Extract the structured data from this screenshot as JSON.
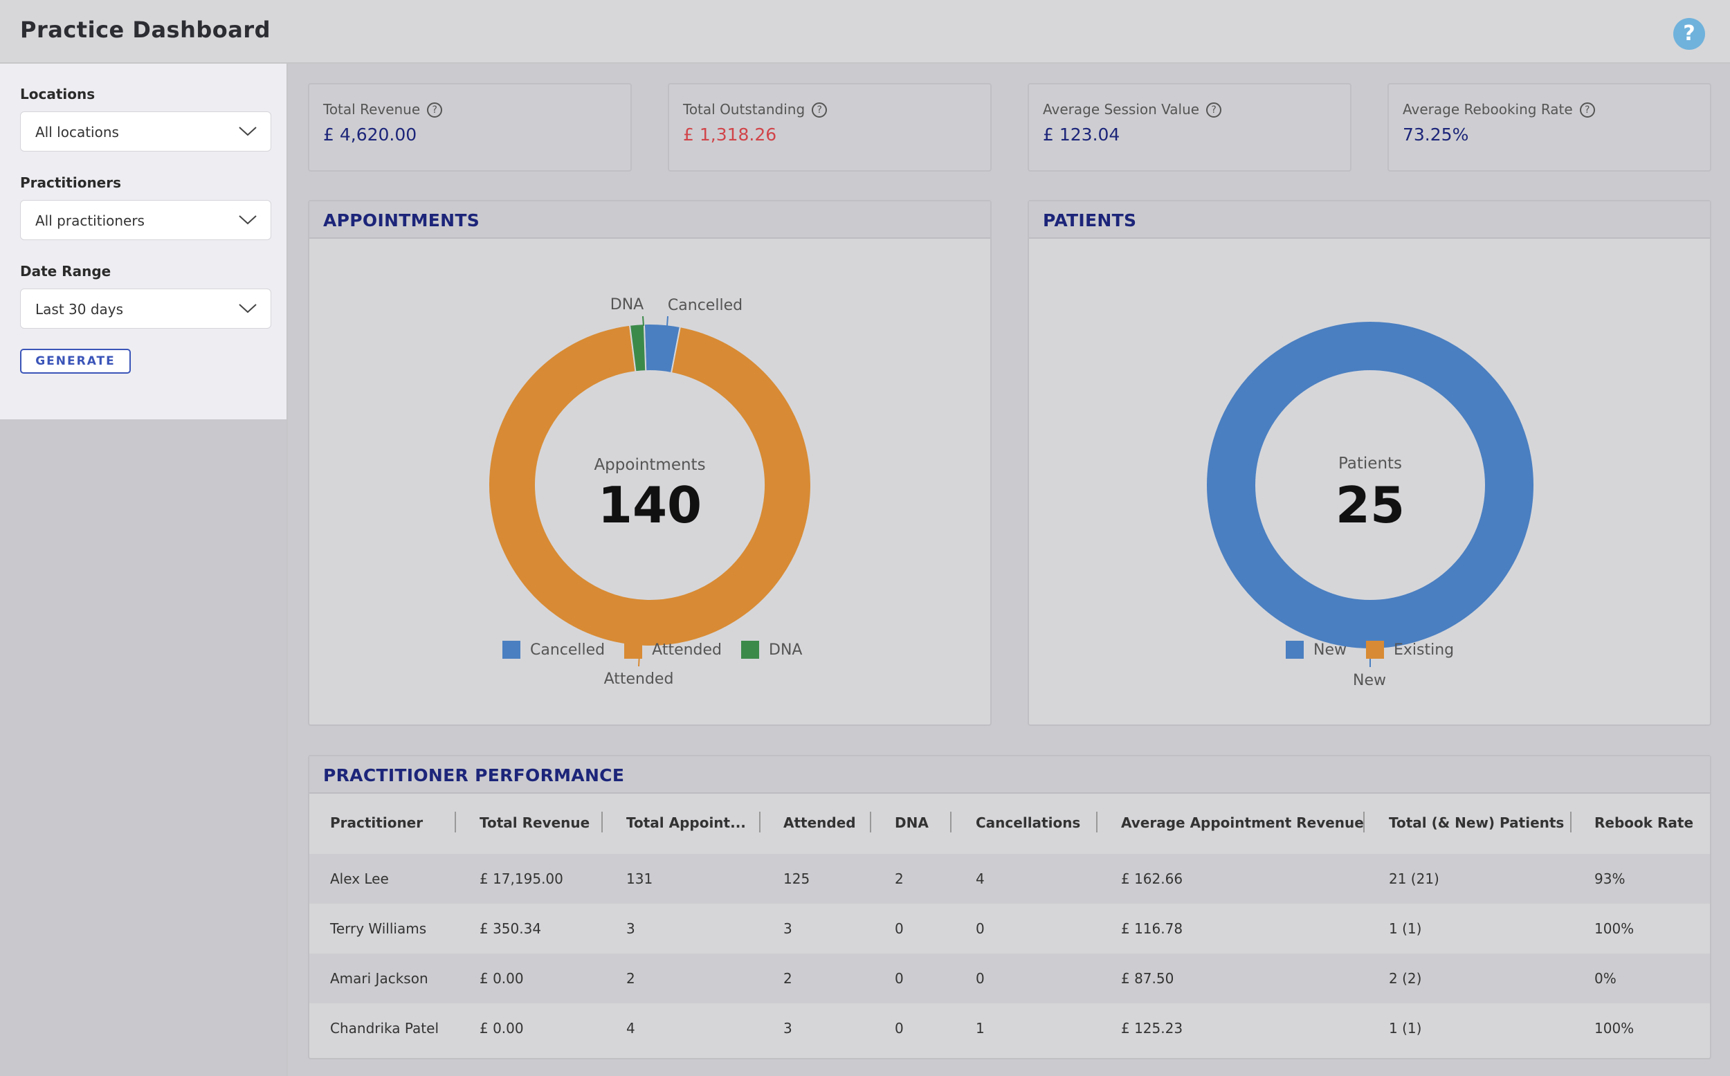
{
  "app": {
    "title": "Practice Dashboard",
    "help_label": "?"
  },
  "filters": {
    "locations": {
      "label": "Locations",
      "value": "All locations"
    },
    "practitioners": {
      "label": "Practitioners",
      "value": "All practitioners"
    },
    "date_range": {
      "label": "Date Range",
      "value": "Last 30 days"
    },
    "generate_label": "GENERATE"
  },
  "kpis": [
    {
      "label": "Total Revenue",
      "value": "£ 4,620.00"
    },
    {
      "label": "Total Outstanding",
      "value": "£ 1,318.26"
    },
    {
      "label": "Average Session Value",
      "value": "£ 123.04"
    },
    {
      "label": "Average Rebooking Rate",
      "value": "73.25%"
    }
  ],
  "appointments": {
    "title": "APPOINTMENTS",
    "center_label": "Appointments",
    "center_value": "140",
    "slice_labels": {
      "dna": "DNA",
      "cancelled": "Cancelled",
      "attended": "Attended"
    },
    "legend": [
      "Cancelled",
      "Attended",
      "DNA"
    ]
  },
  "patients": {
    "title": "PATIENTS",
    "center_label": "Patients",
    "center_value": "25",
    "slice_labels": {
      "new": "New"
    },
    "legend": [
      "New",
      "Existing"
    ]
  },
  "chart_data": [
    {
      "type": "pie",
      "title": "APPOINTMENTS",
      "categories": [
        "Cancelled",
        "Attended",
        "DNA"
      ],
      "values": [
        5,
        133,
        2
      ],
      "colors": [
        "#4a7fc1",
        "#d88b34",
        "#3c8a4a"
      ],
      "legend": "bottom"
    },
    {
      "type": "pie",
      "title": "PATIENTS",
      "categories": [
        "New",
        "Existing"
      ],
      "values": [
        25,
        0
      ],
      "colors": [
        "#4a7fc1",
        "#d88b34"
      ],
      "legend": "bottom"
    }
  ],
  "performance": {
    "title": "PRACTITIONER PERFORMANCE",
    "columns": [
      "Practitioner",
      "Total Revenue",
      "Total Appoint...",
      "Attended",
      "DNA",
      "Cancellations",
      "Average Appointment Revenue",
      "Total (& New) Patients",
      "Rebook Rate"
    ],
    "rows": [
      [
        "Alex Lee",
        "£ 17,195.00",
        "131",
        "125",
        "2",
        "4",
        "£ 162.66",
        "21 (21)",
        "93%"
      ],
      [
        "Terry Williams",
        "£ 350.34",
        "3",
        "3",
        "0",
        "0",
        "£ 116.78",
        "1 (1)",
        "100%"
      ],
      [
        "Amari Jackson",
        "£ 0.00",
        "2",
        "2",
        "0",
        "0",
        "£ 87.50",
        "2 (2)",
        "0%"
      ],
      [
        "Chandrika Patel",
        "£ 0.00",
        "4",
        "3",
        "0",
        "1",
        "£ 125.23",
        "1 (1)",
        "100%"
      ]
    ]
  },
  "colors": {
    "accent": "#1c2579",
    "negative": "#d0454a",
    "blue": "#4a7fc1",
    "orange": "#d88b34",
    "green": "#3c8a4a",
    "help": "#6fb2dc"
  }
}
